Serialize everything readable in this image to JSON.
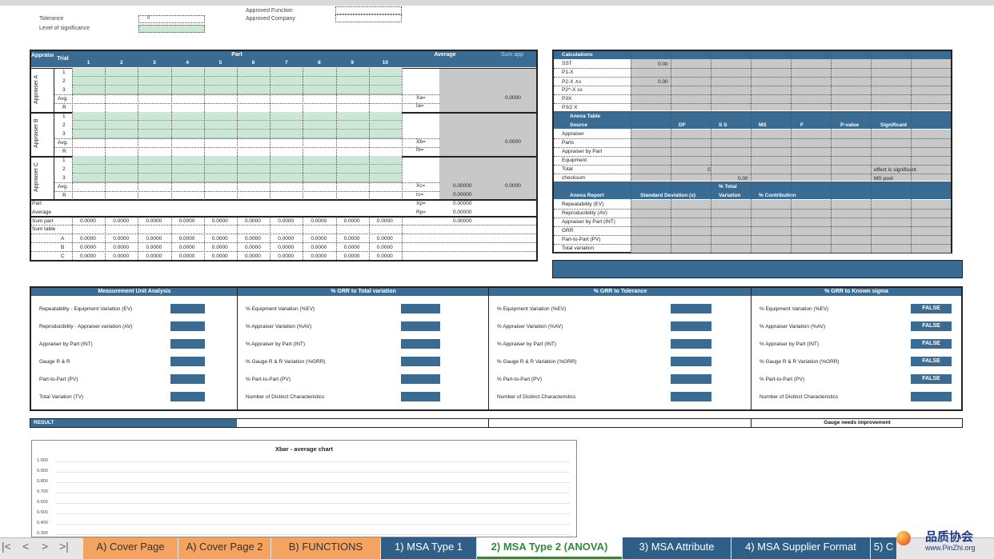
{
  "header": {
    "tolerance_label": "Tolerance",
    "tolerance_value": "0",
    "significance_label": "Level of significance",
    "approved_function_label": "Approved Function",
    "approved_company_label": "Approved Company"
  },
  "grid": {
    "appraiser_col": "Appraiser",
    "trial_col": "Trial",
    "part_label": "Part",
    "average_label": "Average",
    "sum_app_label": "Sum app",
    "parts": [
      "1",
      "2",
      "3",
      "4",
      "5",
      "6",
      "7",
      "8",
      "9",
      "10"
    ],
    "appraisers": [
      "Appraiser A",
      "Appraiser B",
      "Appraiser C"
    ],
    "trials": [
      "1",
      "2",
      "3"
    ],
    "avg_label": "Avg.",
    "r_label": "R",
    "xbar_a": "X̄a=",
    "rbar_a": "r̄a=",
    "xbar_b": "X̄b=",
    "rbar_b": "r̄b=",
    "xbar_c": "X̄c=",
    "rbar_c": "r̄c=",
    "xbar_p": "X̄p=",
    "r_p": "Rp=",
    "sum_a": "0.0000",
    "sum_b": "0.0000",
    "sum_c": "0.0000",
    "xc_value": "0.00000",
    "rc_value": "0.00000",
    "xp_value": "0.00000",
    "rp_value": "0.00000",
    "sum_part_avg": "0.00000",
    "part_row": "Part",
    "average_row": "Average",
    "sum_part_row": "Sum part",
    "sum_table_row": "Sum table",
    "rows_abc": [
      "A",
      "B",
      "C"
    ],
    "zero": "0.0000"
  },
  "calc": {
    "title": "Calculations",
    "rows": [
      "SST",
      "P1-X",
      "P2-X ∧s",
      "P2^-X ss",
      "P3X",
      "P3/2 X"
    ],
    "sst_value": "0.00",
    "p2_value": "0.00",
    "anova_title": "Anova Table",
    "anova_cols": [
      "Source",
      "DF",
      "S S",
      "MS",
      "F",
      "P-value",
      "Significant"
    ],
    "anova_rows": [
      "Appraiser",
      "Parts",
      "Appraiser by Part",
      "Equipment",
      "Total",
      "checksum"
    ],
    "total_df": "0",
    "checksum_value": "0.00",
    "note1": "effect is significant",
    "note2": "MS pool",
    "report_pct_total": "% Total",
    "report_cols": [
      "Anova Report",
      "Standard Deviation (s)",
      "Variation",
      "% Contribution"
    ],
    "report_rows": [
      "Repeatability (EV)",
      "Reproducibility (AV)",
      "Appraiser by Part (INT)",
      "GRR",
      "Part-to-Part (PV)",
      "Total variation"
    ]
  },
  "analysis": {
    "headers": [
      "Measurement Unit Analysis",
      "% GRR to Total variation",
      "% GRR to Tolerance",
      "% GRR to Known sigma"
    ],
    "col1": [
      "Repeatability - Equipment Variation (EV)",
      "Reproducibility - Appraiser variation (AV)",
      "Appraiser by Part (INT)",
      "Gauge R & R",
      "Part-to-Part (PV)",
      "Total Variation (TV)"
    ],
    "col2": [
      "% Equipment Variation (%EV)",
      "% Appraiser Variation (%AV)",
      "% Appraiser by Part (INT)",
      "% Gauge R & R Variation (%GRR)",
      "% Part-to-Part (PV)",
      "Number of Distinct Characteristics"
    ],
    "false_label": "FALSE"
  },
  "result": {
    "label": "RESULT",
    "message": "Gauge needs improvement"
  },
  "chart_data": {
    "type": "line",
    "title": "Xbar - average chart",
    "ylim": [
      0.3,
      1.0
    ],
    "yticks": [
      "1.000",
      "0.900",
      "0.800",
      "0.700",
      "0.600",
      "0.500",
      "0.400",
      "0.300"
    ],
    "series": []
  },
  "tabs": [
    "A) Cover Page",
    "A) Cover Page 2",
    "B) FUNCTIONS",
    "1) MSA Type 1",
    "2) MSA Type 2 (ANOVA)",
    "3) MSA Attribute",
    "4) MSA Supplier Format",
    "5) C"
  ],
  "watermark": {
    "cn": "品质协会",
    "url": "www.PinZhi.org"
  }
}
